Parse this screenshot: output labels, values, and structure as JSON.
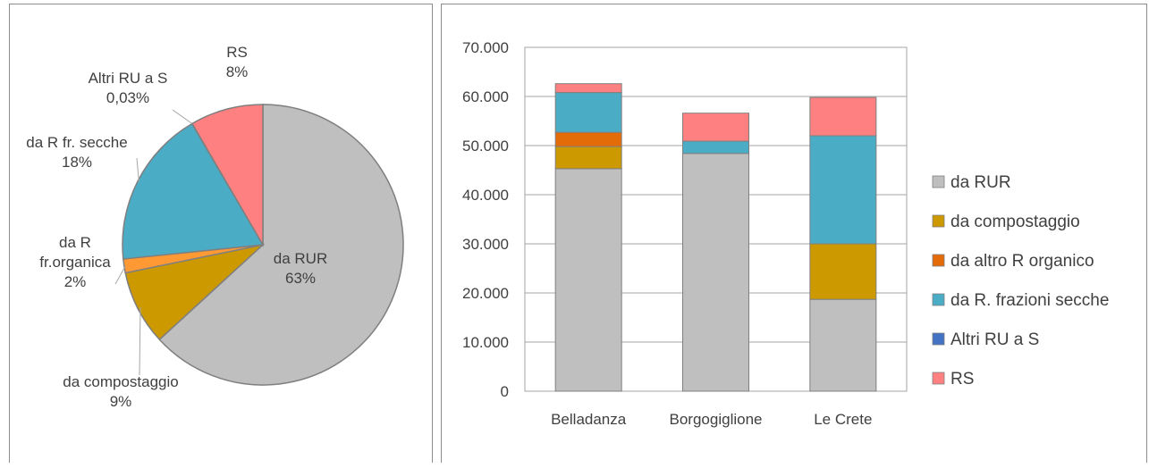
{
  "chart_data": [
    {
      "type": "pie",
      "slices": [
        {
          "name": "da RUR",
          "label": "da RUR",
          "pct_label": "63%",
          "value": 63.2,
          "color": "#bfbfbf"
        },
        {
          "name": "da compostaggio",
          "label": "da compostaggio",
          "pct_label": "9%",
          "value": 8.6,
          "color": "#cc9900"
        },
        {
          "name": "da R fr.organica",
          "label_lines": [
            "da R",
            "fr.organica"
          ],
          "pct_label": "2%",
          "value": 1.6,
          "color": "#ff9933"
        },
        {
          "name": "da R fr. secche",
          "label": "da R fr. secche",
          "pct_label": "18%",
          "value": 18.2,
          "color": "#4bacc6"
        },
        {
          "name": "Altri RU a S",
          "label": "Altri RU a S",
          "pct_label": "0,03%",
          "value": 0.03,
          "color": "#4472c4"
        },
        {
          "name": "RS",
          "label": "RS",
          "pct_label": "8%",
          "value": 8.4,
          "color": "#ff8080"
        }
      ]
    },
    {
      "type": "bar",
      "stacked": true,
      "categories": [
        "Belladanza",
        "Borgogiglione",
        "Le Crete"
      ],
      "series": [
        {
          "name": "da RUR",
          "color": "#bfbfbf",
          "values": [
            45300,
            48400,
            18700
          ]
        },
        {
          "name": "da compostaggio",
          "color": "#cc9900",
          "values": [
            4500,
            0,
            11300
          ]
        },
        {
          "name": "da altro R organico",
          "color": "#e36c09",
          "values": [
            2900,
            0,
            0
          ]
        },
        {
          "name": "da R. frazioni secche",
          "color": "#4bacc6",
          "values": [
            8100,
            2500,
            22000
          ]
        },
        {
          "name": "Altri RU a S",
          "color": "#4472c4",
          "values": [
            0,
            0,
            0
          ]
        },
        {
          "name": "RS",
          "color": "#ff8080",
          "values": [
            1800,
            5700,
            7800
          ]
        }
      ],
      "ylim": [
        0,
        70000
      ],
      "yticks": [
        "0",
        "10.000",
        "20.000",
        "30.000",
        "40.000",
        "50.000",
        "60.000",
        "70.000"
      ],
      "grid": true,
      "legend": "right"
    }
  ]
}
